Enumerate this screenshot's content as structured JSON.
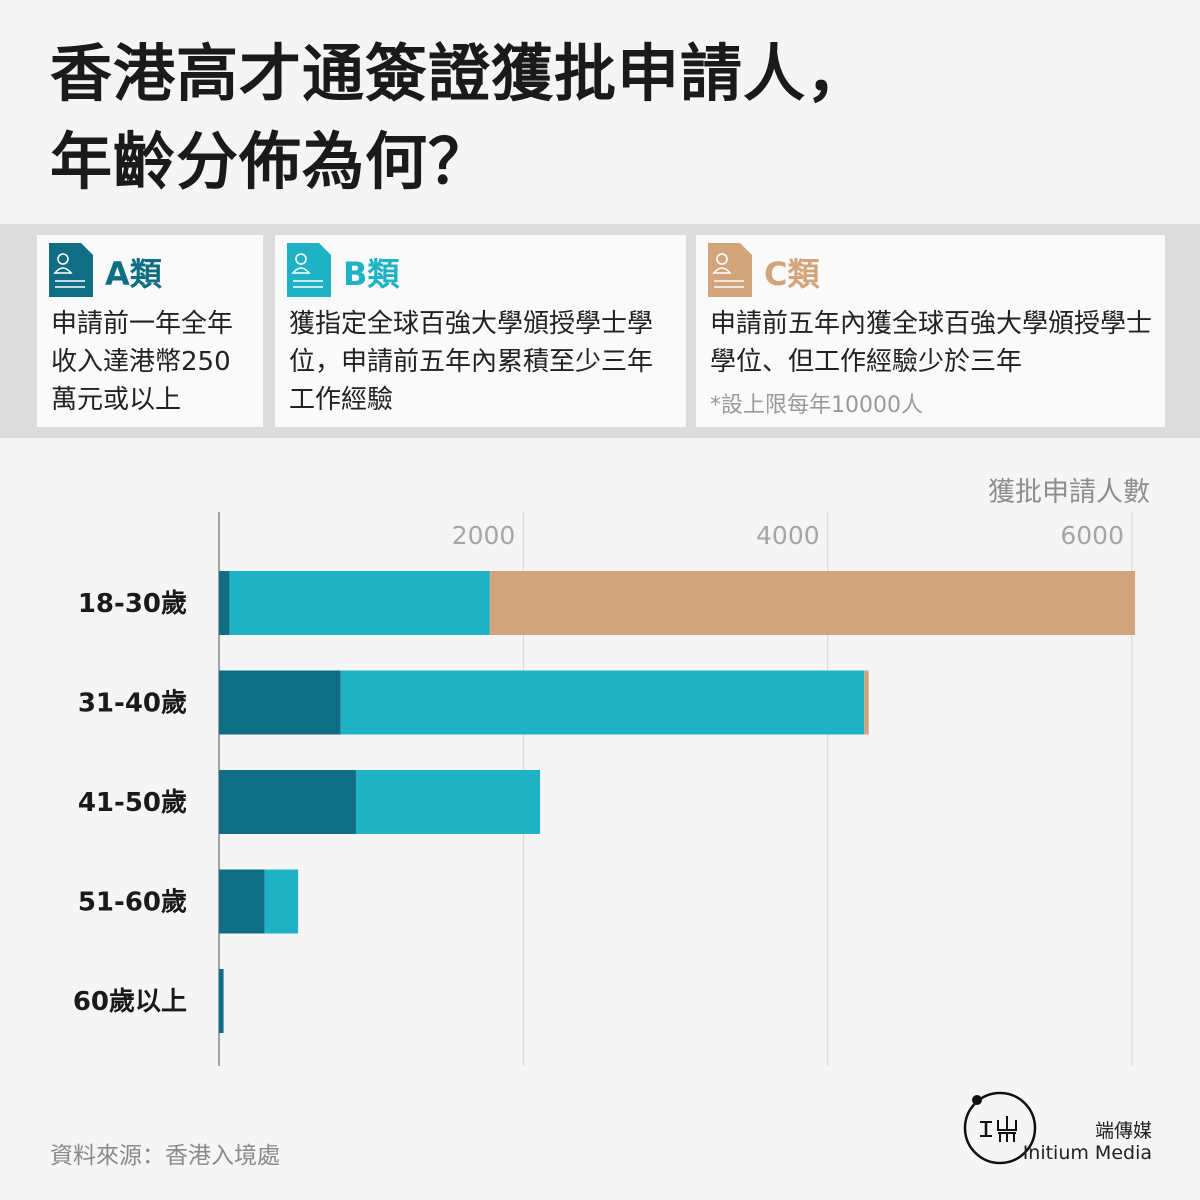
{
  "header": {
    "title_line1": "香港高才通簽證獲批申請人，",
    "title_line2": "年齡分佈為何？"
  },
  "categories_info": [
    {
      "label": "A類",
      "color": "#0f6e84",
      "desc": "申請前一年全年收入達港幣250萬元或以上",
      "note": ""
    },
    {
      "label": "B類",
      "color": "#1eb2c4",
      "desc": "獲指定全球百強大學頒授學士學位，申請前五年內累積至少三年工作經驗",
      "note": ""
    },
    {
      "label": "C類",
      "color": "#d2a47b",
      "desc": "申請前五年內獲全球百強大學頒授學士學位、但工作經驗少於三年",
      "note": "*設上限每年10000人"
    }
  ],
  "chart_data": {
    "type": "bar",
    "orientation": "horizontal",
    "stacked": true,
    "title": "",
    "xlabel": "獲批申請人數",
    "ylabel": "",
    "xlim": [
      0,
      6200
    ],
    "xticks": [
      2000,
      4000,
      6000
    ],
    "grid": true,
    "categories": [
      "18-30歲",
      "31-40歲",
      "41-50歲",
      "51-60歲",
      "60歲以上"
    ],
    "series": [
      {
        "name": "A類",
        "color": "#0f6e84",
        "values": [
          70,
          800,
          900,
          300,
          30
        ]
      },
      {
        "name": "B類",
        "color": "#1eb2c4",
        "values": [
          1710,
          3440,
          1210,
          220,
          0
        ]
      },
      {
        "name": "C類",
        "color": "#d2a47b",
        "values": [
          4240,
          30,
          0,
          0,
          0
        ]
      }
    ]
  },
  "footer": {
    "source": "資料來源：香港入境處",
    "brand_cn": "端傳媒",
    "brand_en": "Initium Media"
  }
}
